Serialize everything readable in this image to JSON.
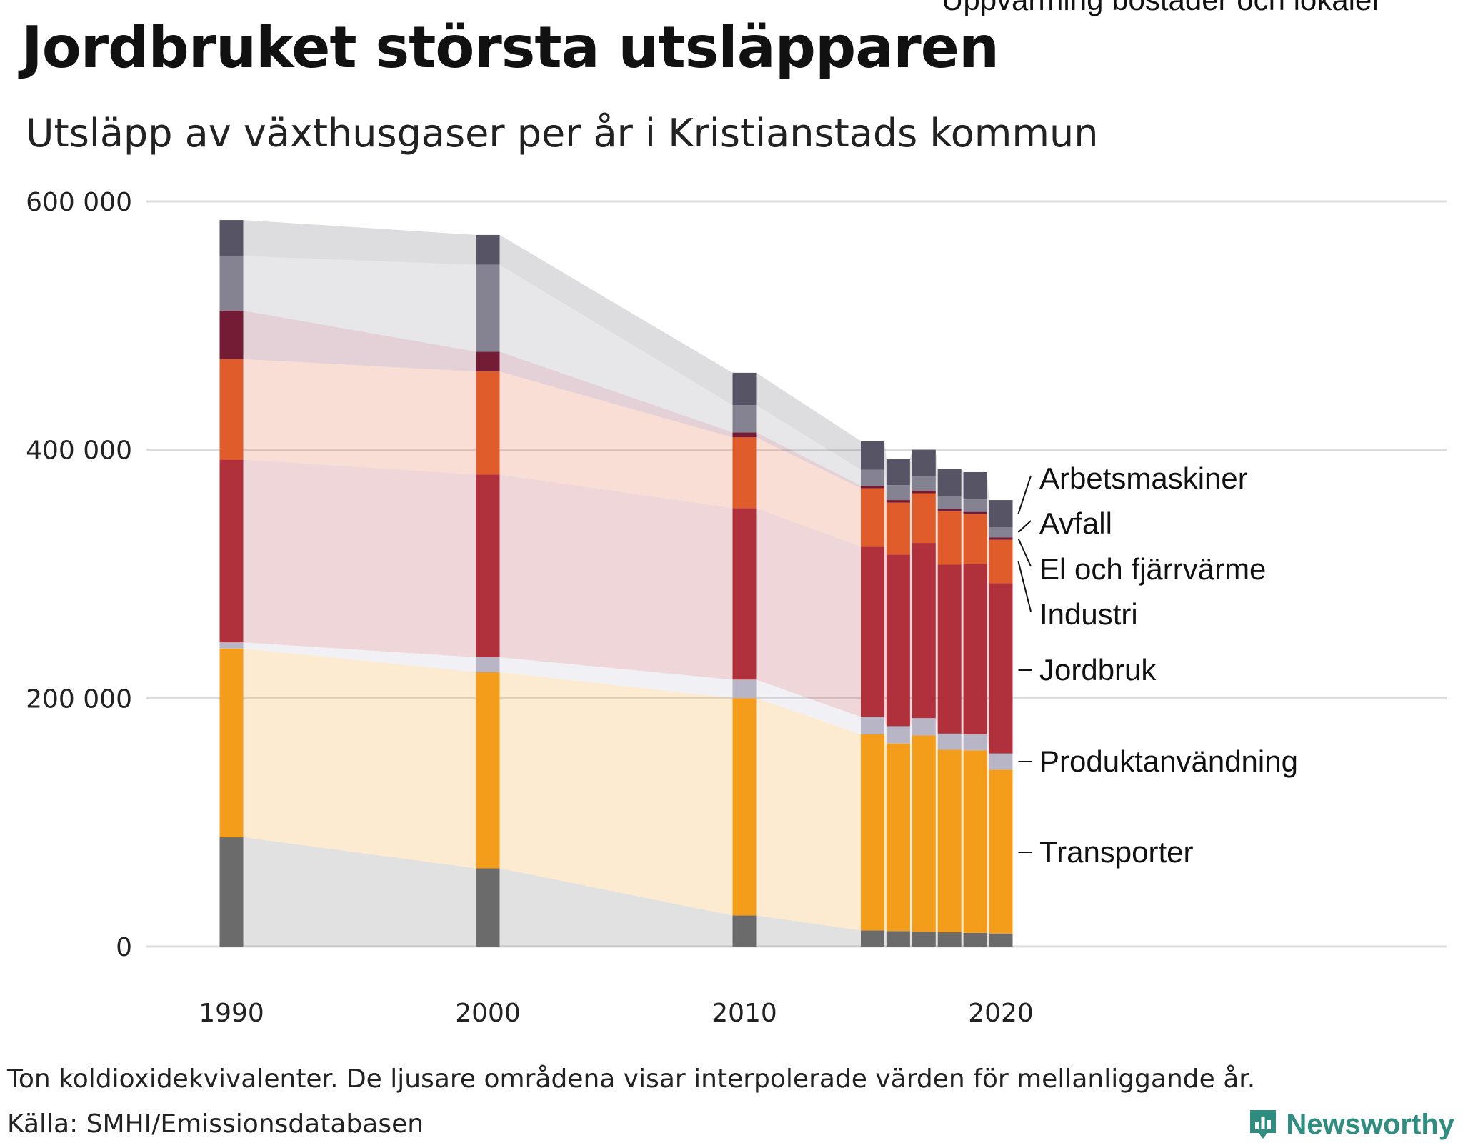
{
  "title": "Jordbruket största utsläpparen",
  "subtitle": "Utsläpp av växthusgaser per år i Kristianstads kommun",
  "footnote": "Ton koldioxidekvivalenter. De ljusare områdena visar interpolerade värden för mellanliggande år.",
  "source": "Källa: SMHI/Emissionsdatabasen",
  "brand": "Newsworthy",
  "chart_data": {
    "type": "bar",
    "stacked": true,
    "title": "Jordbruket största utsläpparen",
    "subtitle": "Utsläpp av växthusgaser per år i Kristianstads kommun",
    "xlabel": "",
    "ylabel": "Ton koldioxidekvivalenter",
    "ylim": [
      0,
      600000
    ],
    "yticks": [
      0,
      200000,
      400000,
      600000
    ],
    "ytick_labels": [
      "0",
      "200 000",
      "400 000",
      "600 000"
    ],
    "xticks": [
      1990,
      2000,
      2010,
      2020
    ],
    "categories": [
      1990,
      2000,
      2010,
      2015,
      2016,
      2017,
      2018,
      2019,
      2020
    ],
    "interpolated_areas": true,
    "series": [
      {
        "name": "Uppvärming bostäder och lokaler",
        "color": "#6b6b6b",
        "values": [
          88000,
          63000,
          25000,
          13000,
          12500,
          12000,
          11500,
          11000,
          10500
        ]
      },
      {
        "name": "Transporter",
        "color": "#f49d1a",
        "values": [
          152000,
          158000,
          175000,
          158000,
          151000,
          158000,
          147000,
          147000,
          132000
        ]
      },
      {
        "name": "Produktanvändning",
        "color": "#b8b6c6",
        "values": [
          5000,
          12000,
          15000,
          14000,
          14000,
          14000,
          13000,
          13000,
          13000
        ]
      },
      {
        "name": "Jordbruk",
        "color": "#b0303b",
        "values": [
          147000,
          147000,
          138000,
          137000,
          138000,
          141000,
          136000,
          137000,
          137000
        ]
      },
      {
        "name": "Industri",
        "color": "#e05c2b",
        "values": [
          81000,
          83000,
          57000,
          47000,
          42000,
          40000,
          43000,
          40000,
          35000
        ]
      },
      {
        "name": "El och fjärrvärme",
        "color": "#741b35",
        "values": [
          39000,
          16000,
          4000,
          2000,
          2000,
          2000,
          2000,
          2000,
          2000
        ]
      },
      {
        "name": "Avfall",
        "color": "#858392",
        "values": [
          44000,
          70000,
          22000,
          13000,
          12000,
          12000,
          10000,
          10000,
          8000
        ]
      },
      {
        "name": "Arbetsmaskiner",
        "color": "#575465",
        "values": [
          29000,
          24000,
          26000,
          23000,
          21000,
          21000,
          22000,
          22000,
          22000
        ]
      }
    ]
  }
}
